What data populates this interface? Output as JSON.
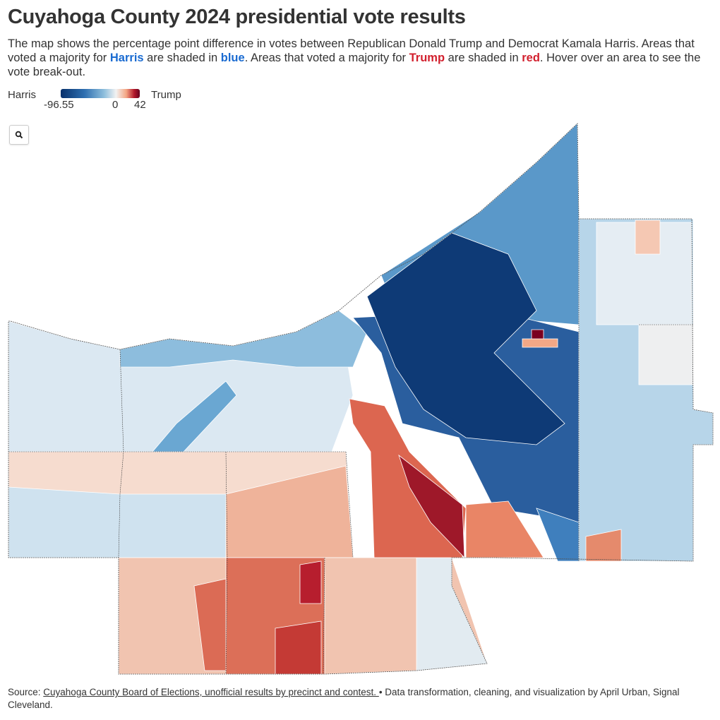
{
  "title": "Cuyahoga County 2024 presidential vote results",
  "description": {
    "part1": "The map shows the percentage point difference in votes between Republican Donald Trump and Democrat Kamala Harris. Areas that voted a majority for ",
    "harris": "Harris",
    "part2": " are shaded in ",
    "blue": "blue",
    "part3": ". Areas that voted a majority for ",
    "trump": "Trump",
    "part4": " are shaded in ",
    "red": "red",
    "part5": ". Hover over an area to see the vote break-out."
  },
  "legend": {
    "left_label": "Harris",
    "right_label": "Trump",
    "min": "-96.55",
    "mid": "0",
    "max": "42"
  },
  "colors": {
    "harris_strong": "#08306b",
    "harris_mid": "#3f7fbd",
    "harris_light": "#b5d3e8",
    "neutral": "#eef0f2",
    "trump_light": "#f4bfa6",
    "trump_mid": "#dd6b55",
    "trump_strong": "#a21a2d"
  },
  "zoom_button": {
    "icon": "search-icon"
  },
  "source": {
    "prefix": "Source: ",
    "link": "Cuyahoga County Board of Elections, unofficial results by precinct and contest. ",
    "suffix": "• Data transformation, cleaning, and visualization by April Urban, Signal Cleveland."
  }
}
